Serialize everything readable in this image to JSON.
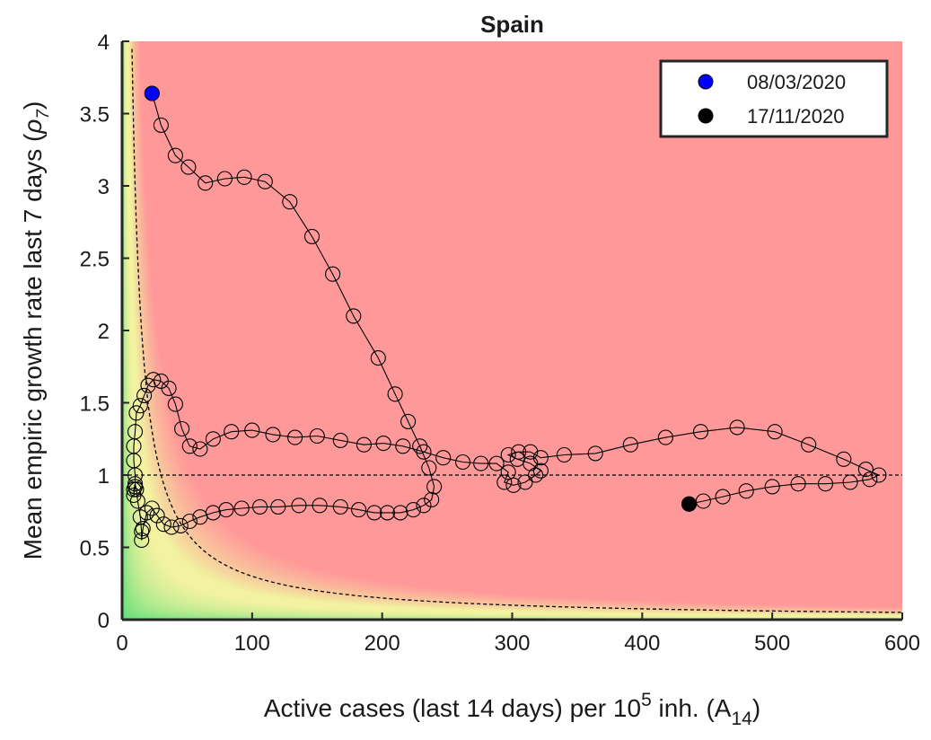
{
  "chart_data": {
    "type": "scatter",
    "title": "Spain",
    "xlabel": {
      "main": "Active cases (last 14 days) per 10",
      "sup": "5",
      "mid": " inh. (A",
      "sub": "14",
      "end": ")"
    },
    "ylabel": {
      "main": "Mean empiric growth rate last 7 days (",
      "greek": "ρ",
      "sub": "7",
      "end": ")"
    },
    "xlim": [
      0,
      600
    ],
    "ylim": [
      0,
      4
    ],
    "xticks": [
      "0",
      "100",
      "200",
      "300",
      "400",
      "500",
      "600"
    ],
    "yticks": [
      "0",
      "0.5",
      "1",
      "1.5",
      "2",
      "2.5",
      "3",
      "3.5",
      "4"
    ],
    "grid": false,
    "legend_position": "top-right",
    "legend": [
      {
        "label": "08/03/2020",
        "color": "#0000ff"
      },
      {
        "label": "17/11/2020",
        "color": "#000000"
      }
    ],
    "background_regions": {
      "low_risk_color": "#66e07a",
      "medium_risk_color": "#f2f2a0",
      "high_risk_color": "#ff9999"
    },
    "reference_lines": [
      {
        "type": "horizontal",
        "y": 1,
        "style": "dashed"
      },
      {
        "type": "curve",
        "formula": "rho*A14=30",
        "style": "dashed"
      }
    ],
    "series": [
      {
        "markers": "open-circle",
        "points": [
          [
            23,
            3.64
          ],
          [
            30,
            3.42
          ],
          [
            41,
            3.21
          ],
          [
            51,
            3.13
          ],
          [
            64,
            3.02
          ],
          [
            79,
            3.05
          ],
          [
            94,
            3.06
          ],
          [
            110,
            3.03
          ],
          [
            129,
            2.89
          ],
          [
            146,
            2.65
          ],
          [
            162,
            2.39
          ],
          [
            178,
            2.1
          ],
          [
            197,
            1.81
          ],
          [
            210,
            1.56
          ],
          [
            220,
            1.37
          ],
          [
            229,
            1.2
          ],
          [
            236,
            1.05
          ],
          [
            240,
            0.92
          ],
          [
            238,
            0.83
          ],
          [
            232,
            0.79
          ],
          [
            224,
            0.76
          ],
          [
            214,
            0.74
          ],
          [
            204,
            0.74
          ],
          [
            194,
            0.74
          ],
          [
            182,
            0.76
          ],
          [
            168,
            0.78
          ],
          [
            152,
            0.79
          ],
          [
            136,
            0.79
          ],
          [
            120,
            0.78
          ],
          [
            106,
            0.78
          ],
          [
            92,
            0.77
          ],
          [
            80,
            0.76
          ],
          [
            70,
            0.74
          ],
          [
            60,
            0.71
          ],
          [
            52,
            0.68
          ],
          [
            45,
            0.65
          ],
          [
            38,
            0.64
          ],
          [
            32,
            0.66
          ],
          [
            27,
            0.72
          ],
          [
            23,
            0.77
          ],
          [
            19,
            0.74
          ],
          [
            16,
            0.63
          ],
          [
            15,
            0.55
          ],
          [
            15,
            0.61
          ],
          [
            14,
            0.71
          ],
          [
            12,
            0.82
          ],
          [
            11,
            0.9
          ],
          [
            10,
            0.94
          ],
          [
            9,
            0.9
          ],
          [
            9,
            0.86
          ],
          [
            10,
            0.92
          ],
          [
            10,
            1.0
          ],
          [
            9,
            1.1
          ],
          [
            9,
            1.2
          ],
          [
            10,
            1.3
          ],
          [
            11,
            1.43
          ],
          [
            14,
            1.48
          ],
          [
            17,
            1.55
          ],
          [
            20,
            1.62
          ],
          [
            24,
            1.66
          ],
          [
            30,
            1.65
          ],
          [
            36,
            1.6
          ],
          [
            41,
            1.49
          ],
          [
            46,
            1.32
          ],
          [
            52,
            1.2
          ],
          [
            60,
            1.18
          ],
          [
            70,
            1.25
          ],
          [
            84,
            1.3
          ],
          [
            100,
            1.31
          ],
          [
            116,
            1.28
          ],
          [
            133,
            1.26
          ],
          [
            150,
            1.27
          ],
          [
            168,
            1.24
          ],
          [
            186,
            1.21
          ],
          [
            201,
            1.22
          ],
          [
            216,
            1.2
          ],
          [
            232,
            1.16
          ],
          [
            247,
            1.12
          ],
          [
            262,
            1.09
          ],
          [
            276,
            1.08
          ],
          [
            288,
            1.08
          ],
          [
            297,
            1.02
          ],
          [
            294,
            0.95
          ],
          [
            301,
            0.93
          ],
          [
            310,
            0.95
          ],
          [
            318,
            1.0
          ],
          [
            322,
            1.03
          ],
          [
            314,
            1.08
          ],
          [
            304,
            1.11
          ],
          [
            297,
            1.14
          ],
          [
            305,
            1.16
          ],
          [
            314,
            1.16
          ],
          [
            322,
            1.12
          ],
          [
            340,
            1.14
          ],
          [
            364,
            1.15
          ],
          [
            391,
            1.21
          ],
          [
            418,
            1.26
          ],
          [
            445,
            1.3
          ],
          [
            473,
            1.33
          ],
          [
            502,
            1.3
          ],
          [
            528,
            1.21
          ],
          [
            555,
            1.11
          ],
          [
            572,
            1.04
          ],
          [
            582,
            1.0
          ],
          [
            575,
            0.97
          ],
          [
            560,
            0.95
          ],
          [
            541,
            0.94
          ],
          [
            520,
            0.94
          ],
          [
            500,
            0.92
          ],
          [
            480,
            0.89
          ],
          [
            462,
            0.85
          ],
          [
            447,
            0.82
          ],
          [
            436,
            0.8
          ]
        ]
      }
    ],
    "start_point": {
      "label": "08/03/2020",
      "x": 23,
      "y": 3.64
    },
    "end_point": {
      "label": "17/11/2020",
      "x": 436,
      "y": 0.8
    }
  }
}
